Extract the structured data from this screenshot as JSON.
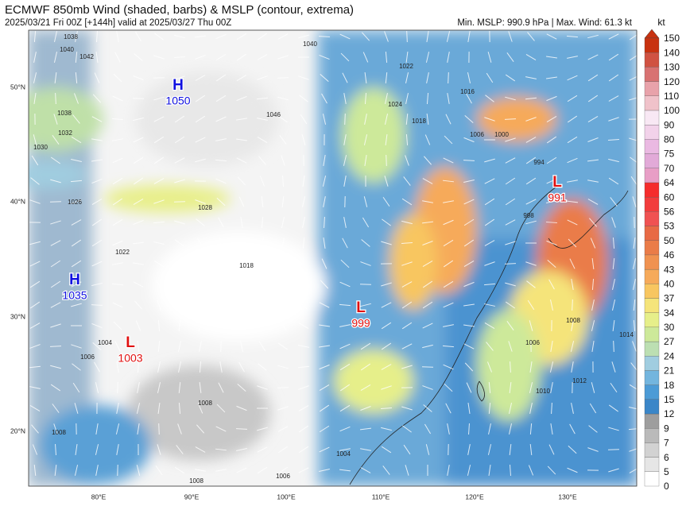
{
  "header": {
    "title": "ECMWF 850mb Wind (shaded, barbs) & MSLP (contour, extrema)",
    "subtitle": "2025/03/21 Fri 00Z [+144h] valid at 2025/03/27 Thu 00Z",
    "stats": "Min. MSLP: 990.9 hPa | Max. Wind: 61.3 kt"
  },
  "colorbar": {
    "unit": "kt",
    "levels": [
      0,
      5,
      6,
      7,
      9,
      12,
      15,
      18,
      21,
      24,
      27,
      30,
      34,
      37,
      40,
      43,
      46,
      50,
      53,
      56,
      60,
      64,
      70,
      75,
      80,
      90,
      100,
      110,
      120,
      130,
      140,
      150
    ],
    "colors": [
      "#ffffff",
      "#e6e6e6",
      "#d2d2d2",
      "#bababa",
      "#9e9e9e",
      "#3a86c8",
      "#4c9bd6",
      "#73b5de",
      "#a0cde0",
      "#bcdfb2",
      "#cde99a",
      "#e6ef8a",
      "#f5e47a",
      "#f8c660",
      "#f6aa5a",
      "#f09250",
      "#ea7c48",
      "#e86a45",
      "#f05252",
      "#f23c3c",
      "#f52c2c",
      "#e89ec6",
      "#e2aad8",
      "#eab9e2",
      "#f2d2ea",
      "#f8e8f4",
      "#f0c2ca",
      "#e8a2aa",
      "#d87272",
      "#d05242",
      "#c83210"
    ]
  },
  "axes": {
    "lat_labels": [
      "50°N",
      "40°N",
      "30°N",
      "20°N"
    ],
    "lon_labels": [
      "80°E",
      "90°E",
      "100°E",
      "110°E",
      "120°E",
      "130°E"
    ]
  },
  "centers": [
    {
      "symbol": "H",
      "value": "1050"
    },
    {
      "symbol": "H",
      "value": "1035"
    },
    {
      "symbol": "L",
      "value": "1003"
    },
    {
      "symbol": "L",
      "value": "999"
    },
    {
      "symbol": "L",
      "value": "991"
    }
  ],
  "isobar_labels": [
    "1038",
    "1040",
    "1042",
    "1040",
    "1022",
    "1024",
    "1018",
    "1016",
    "1046",
    "1038",
    "1032",
    "1030",
    "1026",
    "1028",
    "1022",
    "1018",
    "1006",
    "1008",
    "1010",
    "1012",
    "1014",
    "1004",
    "1006",
    "1008",
    "1008",
    "1006",
    "1008",
    "1004",
    "1006",
    "1000",
    "994",
    "998"
  ]
}
